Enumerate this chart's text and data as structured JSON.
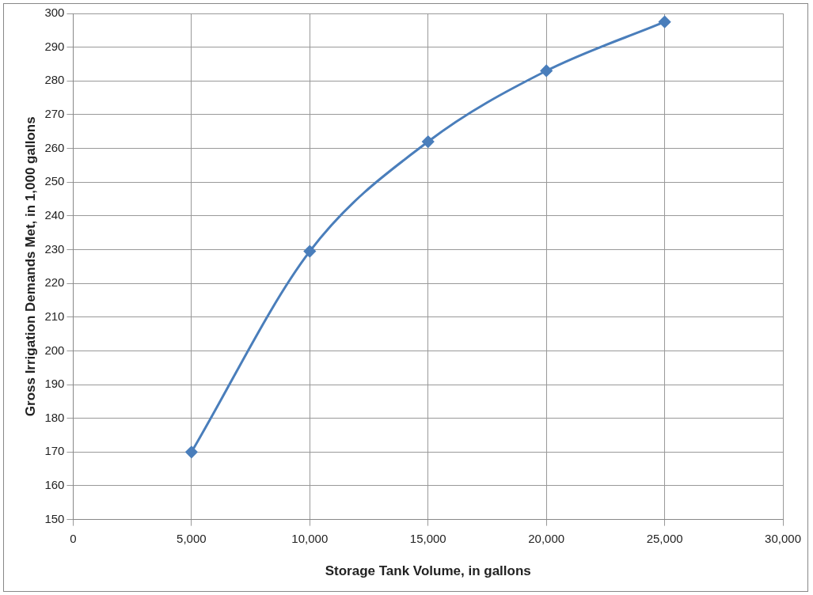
{
  "chart_data": {
    "type": "line",
    "xlabel": "Storage Tank Volume, in gallons",
    "ylabel": "Gross Irrigation Demands Met, in 1,000 gallons",
    "x": [
      5000,
      10000,
      15000,
      20000,
      25000
    ],
    "series": [
      {
        "color": "#4a7ebb",
        "values": [
          170,
          229.5,
          262,
          283,
          297.5
        ]
      }
    ],
    "xlim": [
      0,
      30000
    ],
    "xticks": [
      {
        "value": 0,
        "label": "0"
      },
      {
        "value": 5000,
        "label": "5,000"
      },
      {
        "value": 10000,
        "label": "10,000"
      },
      {
        "value": 15000,
        "label": "15,000"
      },
      {
        "value": 20000,
        "label": "20,000"
      },
      {
        "value": 25000,
        "label": "25,000"
      },
      {
        "value": 30000,
        "label": "30,000"
      }
    ],
    "ylim": [
      150,
      300
    ],
    "yticks": [
      150,
      160,
      170,
      180,
      190,
      200,
      210,
      220,
      230,
      240,
      250,
      260,
      270,
      280,
      290,
      300
    ],
    "grid": true,
    "legend": false,
    "marker": "diamond",
    "line_style": "solid"
  }
}
